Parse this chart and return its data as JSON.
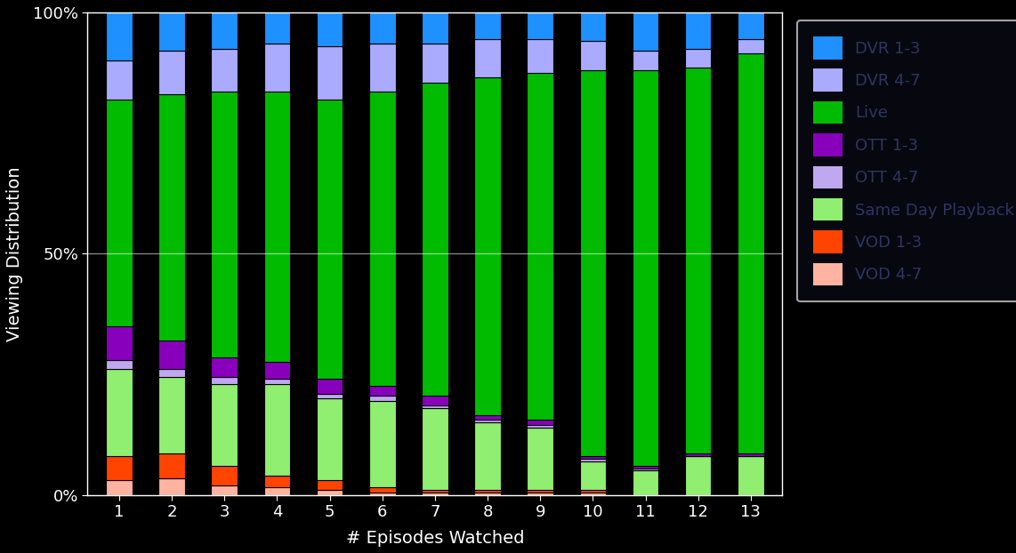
{
  "categories": [
    1,
    2,
    3,
    4,
    5,
    6,
    7,
    8,
    9,
    10,
    11,
    12,
    13
  ],
  "series": {
    "VOD 4-7": [
      3.0,
      3.5,
      2.0,
      1.5,
      1.0,
      0.5,
      0.5,
      0.5,
      0.5,
      0.5,
      0.0,
      0.0,
      0.0
    ],
    "VOD 1-3": [
      5.0,
      5.0,
      4.0,
      2.5,
      2.0,
      1.0,
      0.5,
      0.5,
      0.5,
      0.5,
      0.0,
      0.0,
      0.0
    ],
    "Same Day Playback": [
      18.0,
      16.0,
      17.0,
      19.0,
      17.0,
      18.0,
      17.0,
      14.0,
      13.0,
      6.0,
      5.0,
      8.0,
      8.0
    ],
    "OTT 4-7": [
      2.0,
      1.5,
      1.5,
      1.0,
      1.0,
      1.0,
      0.5,
      0.5,
      0.5,
      0.5,
      0.5,
      0.0,
      0.0
    ],
    "OTT 1-3": [
      7.0,
      6.0,
      4.0,
      3.5,
      3.0,
      2.0,
      2.0,
      1.0,
      1.0,
      0.5,
      0.5,
      0.5,
      0.5
    ],
    "Live": [
      47.0,
      51.0,
      55.0,
      56.0,
      58.0,
      61.0,
      65.0,
      70.0,
      72.0,
      80.0,
      82.0,
      80.0,
      83.0
    ],
    "DVR 4-7": [
      8.0,
      9.0,
      9.0,
      10.0,
      11.0,
      10.0,
      8.0,
      8.0,
      7.0,
      6.0,
      4.0,
      4.0,
      3.0
    ],
    "DVR 1-3": [
      10.0,
      8.0,
      7.5,
      6.5,
      7.0,
      6.5,
      6.5,
      5.5,
      5.5,
      6.0,
      8.0,
      7.5,
      5.5
    ]
  },
  "colors": {
    "VOD 4-7": "#ffb3a0",
    "VOD 1-3": "#ff4400",
    "Same Day Playback": "#90ee70",
    "OTT 4-7": "#c0a8f0",
    "OTT 1-3": "#8800bb",
    "Live": "#00bb00",
    "DVR 4-7": "#aaaaff",
    "DVR 1-3": "#1e90ff"
  },
  "xlabel": "# Episodes Watched",
  "ylabel": "Viewing Distribution",
  "yticks": [
    0,
    50,
    100
  ],
  "ytick_labels": [
    "0%",
    "50%",
    "100%"
  ],
  "background_color": "#000000",
  "axes_bg_color": "#000000",
  "text_color": "#ffffff",
  "legend_text_color": "#2d3561",
  "grid_color": "#ffffff",
  "bar_edge_color": "#000000",
  "legend_facecolor": "#0a0a14",
  "legend_edgecolor": "#cccccc",
  "legend_order": [
    "DVR 1-3",
    "DVR 4-7",
    "Live",
    "OTT 1-3",
    "OTT 4-7",
    "Same Day Playback",
    "VOD 1-3",
    "VOD 4-7"
  ],
  "figsize": [
    11.42,
    6.22
  ],
  "dpi": 100
}
